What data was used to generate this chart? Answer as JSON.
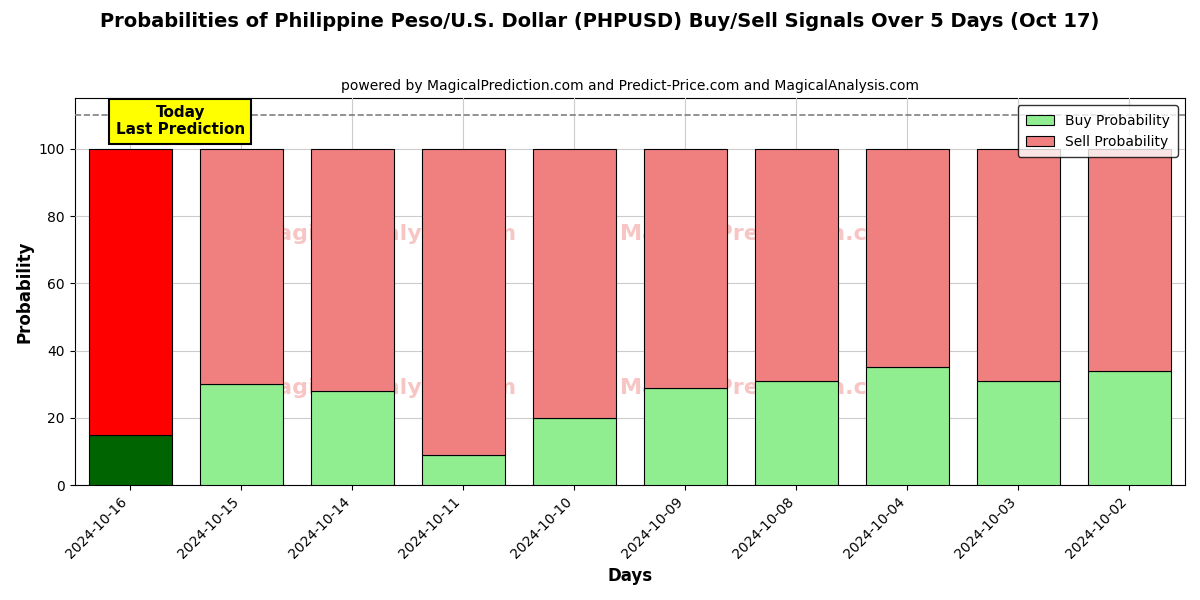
{
  "title": "Probabilities of Philippine Peso/U.S. Dollar (PHPUSD) Buy/Sell Signals Over 5 Days (Oct 17)",
  "subtitle": "powered by MagicalPrediction.com and Predict-Price.com and MagicalAnalysis.com",
  "xlabel": "Days",
  "ylabel": "Probability",
  "categories": [
    "2024-10-16",
    "2024-10-15",
    "2024-10-14",
    "2024-10-11",
    "2024-10-10",
    "2024-10-09",
    "2024-10-08",
    "2024-10-04",
    "2024-10-03",
    "2024-10-02"
  ],
  "buy_values": [
    15,
    30,
    28,
    9,
    20,
    29,
    31,
    35,
    31,
    34
  ],
  "sell_values": [
    85,
    70,
    72,
    91,
    80,
    71,
    69,
    65,
    69,
    66
  ],
  "today_buy_color": "#006400",
  "today_sell_color": "#FF0000",
  "buy_color": "#90EE90",
  "sell_color": "#F08080",
  "today_annotation_bg": "#FFFF00",
  "today_annotation_text": "Today\nLast Prediction",
  "legend_buy_label": "Buy Probability",
  "legend_sell_label": "Sell Probability",
  "ylim": [
    0,
    115
  ],
  "dashed_line_y": 110,
  "background_color": "#ffffff",
  "grid_color": "#cccccc"
}
